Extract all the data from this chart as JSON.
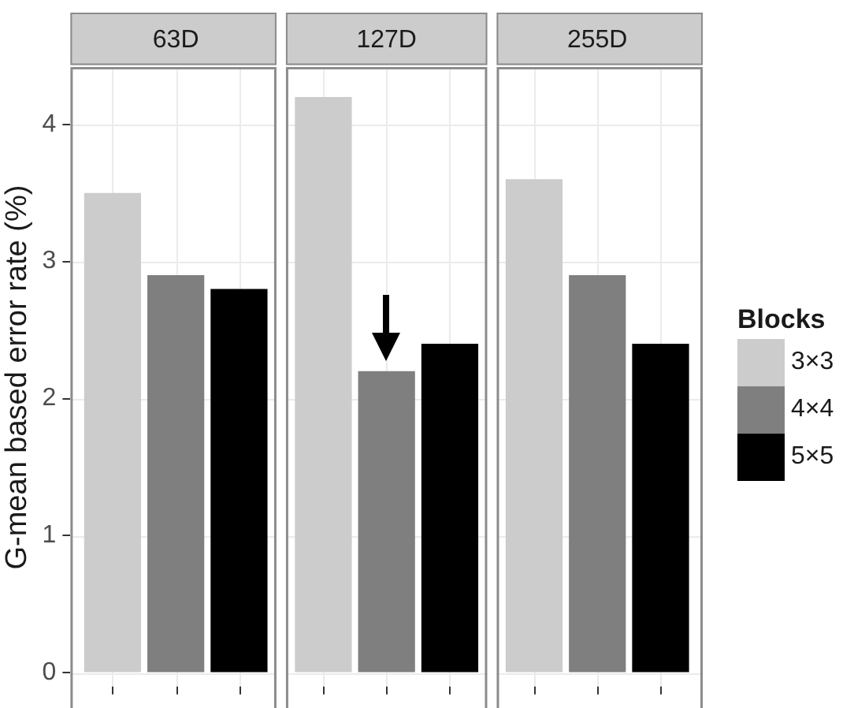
{
  "chart_data": {
    "type": "bar",
    "ylabel": "G-mean based error rate (%)",
    "categories": [
      "63D",
      "127D",
      "255D"
    ],
    "ylim": [
      -0.1,
      4.41
    ],
    "yticks": [
      0,
      1,
      2,
      3,
      4
    ],
    "grid": true,
    "legend": "right",
    "legend_title": "Blocks",
    "series": [
      {
        "name": "3×3",
        "color": "#cccccc",
        "values": [
          3.5,
          4.2,
          3.6
        ]
      },
      {
        "name": "4×4",
        "color": "#7f7f7f",
        "values": [
          2.9,
          2.2,
          2.9
        ]
      },
      {
        "name": "5×5",
        "color": "#000000",
        "values": [
          2.8,
          2.4,
          2.4
        ]
      }
    ]
  }
}
